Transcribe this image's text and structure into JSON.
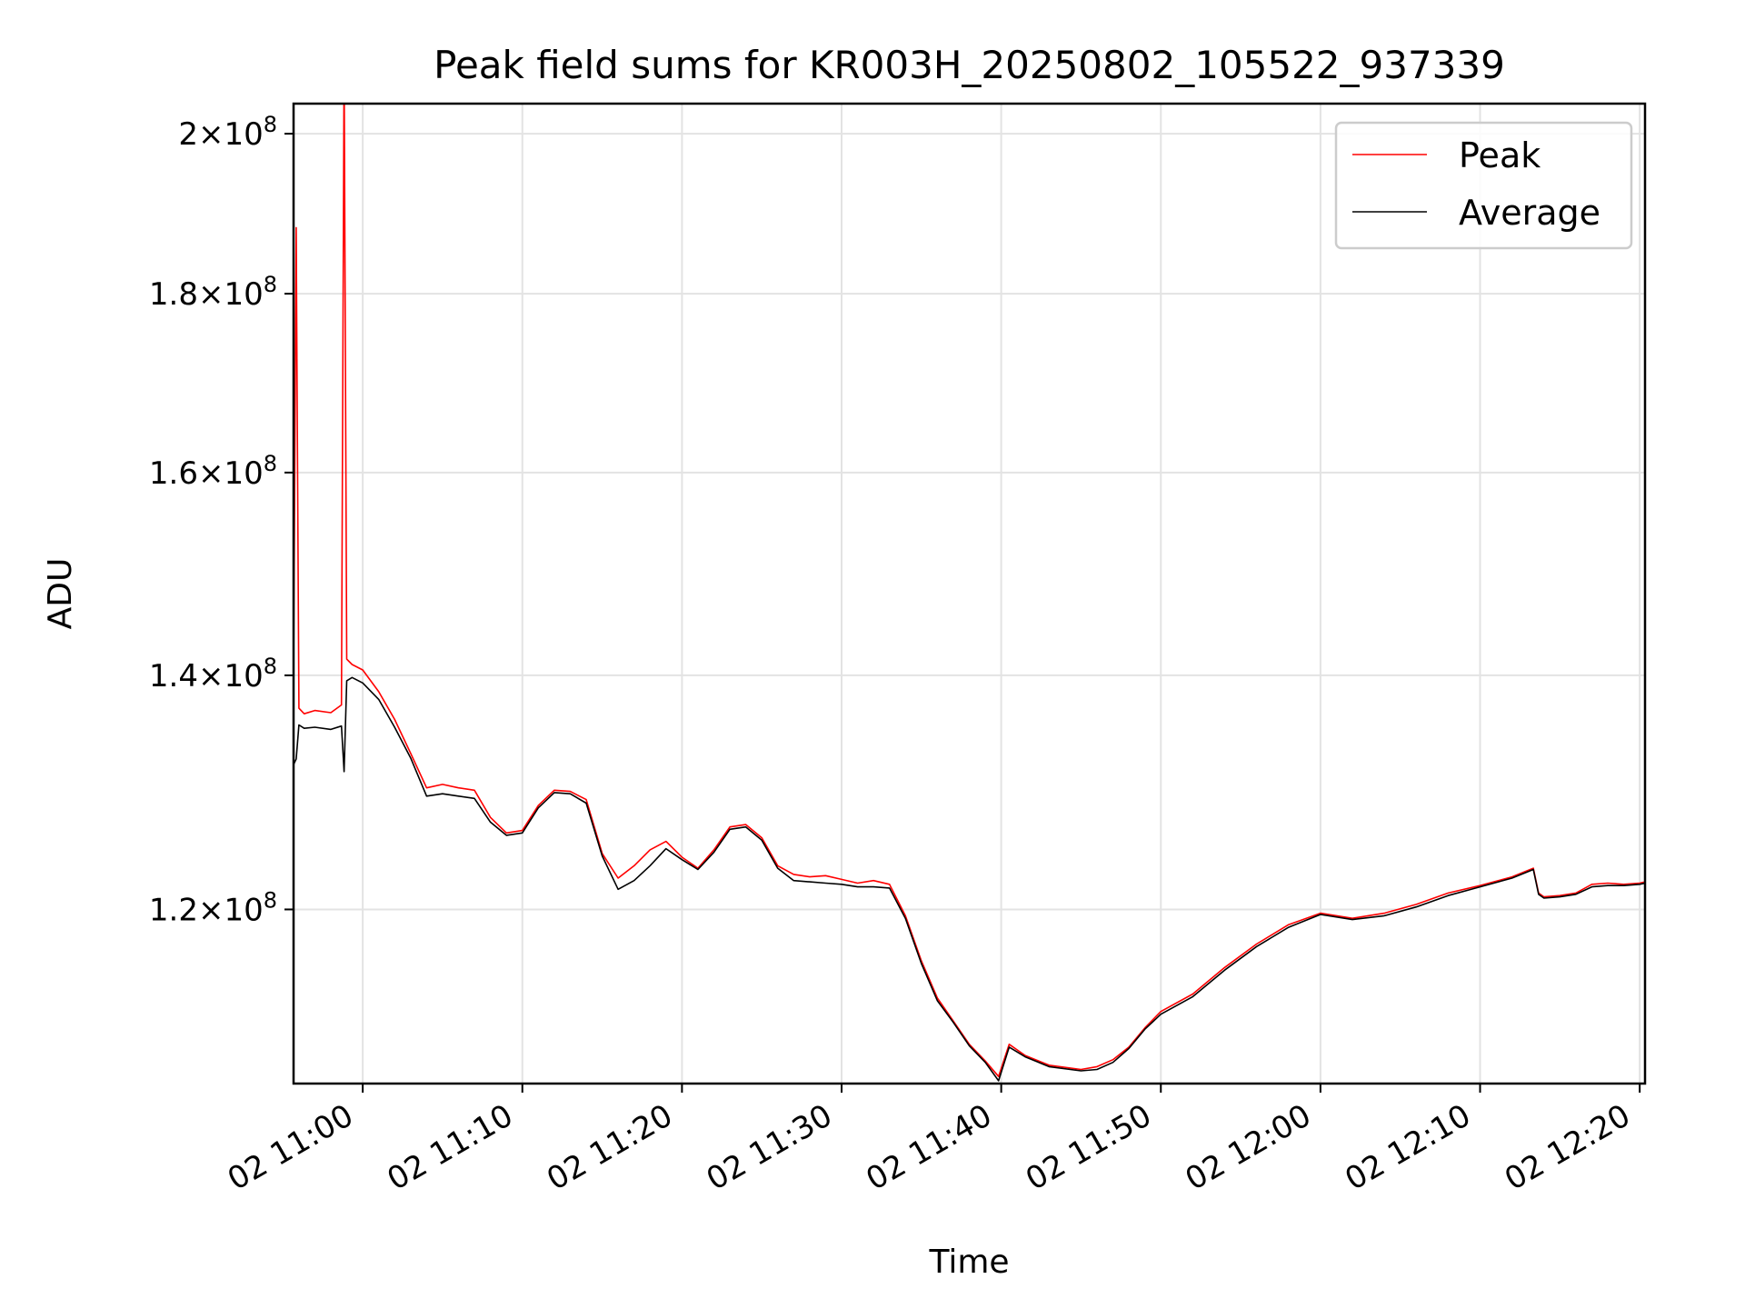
{
  "chart_data": {
    "type": "line",
    "title": "Peak field sums for KR003H_20250802_105522_937339",
    "xlabel": "Time",
    "ylabel": "ADU",
    "x_unit": "time of day (day 02)",
    "xlim": [
      "10:55:40",
      "12:20:20"
    ],
    "ylim": [
      107000000,
      204000000
    ],
    "yscale": "log",
    "grid": true,
    "legend_position": "upper-right",
    "x_ticks": [
      {
        "time": "11:00",
        "label": "02 11:00"
      },
      {
        "time": "11:10",
        "label": "02 11:10"
      },
      {
        "time": "11:20",
        "label": "02 11:20"
      },
      {
        "time": "11:30",
        "label": "02 11:30"
      },
      {
        "time": "11:40",
        "label": "02 11:40"
      },
      {
        "time": "11:50",
        "label": "02 11:50"
      },
      {
        "time": "12:00",
        "label": "02 12:00"
      },
      {
        "time": "12:10",
        "label": "02 12:10"
      },
      {
        "time": "12:20",
        "label": "02 12:20"
      }
    ],
    "y_ticks": [
      {
        "value": 120000000,
        "mantissa": "1.2",
        "base": "10",
        "exp": "8"
      },
      {
        "value": 140000000,
        "mantissa": "1.4",
        "base": "10",
        "exp": "8"
      },
      {
        "value": 160000000,
        "mantissa": "1.6",
        "base": "10",
        "exp": "8"
      },
      {
        "value": 180000000,
        "mantissa": "1.8",
        "base": "10",
        "exp": "8"
      },
      {
        "value": 200000000,
        "mantissa": "2",
        "base": "10",
        "exp": "8"
      }
    ],
    "series": [
      {
        "name": "Peak",
        "color": "#ff0000",
        "x": [
          "10:55:40",
          "10:55:50",
          "10:56:00",
          "10:56:20",
          "10:57:00",
          "10:58:00",
          "10:58:40",
          "10:58:50",
          "10:59:00",
          "10:59:20",
          "11:00:00",
          "11:01:00",
          "11:02:00",
          "11:03:00",
          "11:04:00",
          "11:05:00",
          "11:06:00",
          "11:07:00",
          "11:08:00",
          "11:09:00",
          "11:10:00",
          "11:11:00",
          "11:12:00",
          "11:13:00",
          "11:14:00",
          "11:15:00",
          "11:16:00",
          "11:17:00",
          "11:18:00",
          "11:19:00",
          "11:20:00",
          "11:21:00",
          "11:22:00",
          "11:23:00",
          "11:24:00",
          "11:25:00",
          "11:26:00",
          "11:27:00",
          "11:28:00",
          "11:29:00",
          "11:30:00",
          "11:31:00",
          "11:32:00",
          "11:33:00",
          "11:34:00",
          "11:35:00",
          "11:36:00",
          "11:37:00",
          "11:38:00",
          "11:39:00",
          "11:39:50",
          "11:40:30",
          "11:41:30",
          "11:43:00",
          "11:45:00",
          "11:46:00",
          "11:47:00",
          "11:48:00",
          "11:49:00",
          "11:50:00",
          "11:52:00",
          "11:54:00",
          "11:56:00",
          "11:58:00",
          "12:00:00",
          "12:02:00",
          "12:04:00",
          "12:06:00",
          "12:08:00",
          "12:10:00",
          "12:12:00",
          "12:13:20",
          "12:13:40",
          "12:14:00",
          "12:15:00",
          "12:16:00",
          "12:17:00",
          "12:18:00",
          "12:19:00",
          "12:20:00",
          "12:20:20"
        ],
        "values": [
          140000000,
          188000000,
          137000000,
          136500000,
          136800000,
          136600000,
          137300000,
          210000000,
          141500000,
          141000000,
          140500000,
          138500000,
          136000000,
          133000000,
          130000000,
          130300000,
          130000000,
          129800000,
          127500000,
          126200000,
          126400000,
          128500000,
          129800000,
          129700000,
          129000000,
          124500000,
          122500000,
          123500000,
          124800000,
          125500000,
          124200000,
          123300000,
          124800000,
          126700000,
          126900000,
          125800000,
          123500000,
          122800000,
          122600000,
          122700000,
          122400000,
          122100000,
          122300000,
          122000000,
          119500000,
          116000000,
          113200000,
          111500000,
          109800000,
          108600000,
          107500000,
          109800000,
          109000000,
          108300000,
          108000000,
          108200000,
          108700000,
          109600000,
          111000000,
          112200000,
          113500000,
          115500000,
          117300000,
          118800000,
          119700000,
          119300000,
          119700000,
          120400000,
          121300000,
          121900000,
          122600000,
          123300000,
          121300000,
          121000000,
          121100000,
          121300000,
          122000000,
          122100000,
          122000000,
          122100000,
          122200000
        ]
      },
      {
        "name": "Average",
        "color": "#000000",
        "x": [
          "10:55:40",
          "10:55:50",
          "10:56:00",
          "10:56:20",
          "10:57:00",
          "10:58:00",
          "10:58:40",
          "10:58:50",
          "10:59:00",
          "10:59:20",
          "11:00:00",
          "11:01:00",
          "11:02:00",
          "11:03:00",
          "11:04:00",
          "11:05:00",
          "11:06:00",
          "11:07:00",
          "11:08:00",
          "11:09:00",
          "11:10:00",
          "11:11:00",
          "11:12:00",
          "11:13:00",
          "11:14:00",
          "11:15:00",
          "11:16:00",
          "11:17:00",
          "11:18:00",
          "11:19:00",
          "11:20:00",
          "11:21:00",
          "11:22:00",
          "11:23:00",
          "11:24:00",
          "11:25:00",
          "11:26:00",
          "11:27:00",
          "11:28:00",
          "11:29:00",
          "11:30:00",
          "11:31:00",
          "11:32:00",
          "11:33:00",
          "11:34:00",
          "11:35:00",
          "11:36:00",
          "11:37:00",
          "11:38:00",
          "11:39:00",
          "11:39:50",
          "11:40:30",
          "11:41:30",
          "11:43:00",
          "11:45:00",
          "11:46:00",
          "11:47:00",
          "11:48:00",
          "11:49:00",
          "11:50:00",
          "11:52:00",
          "11:54:00",
          "11:56:00",
          "11:58:00",
          "12:00:00",
          "12:02:00",
          "12:04:00",
          "12:06:00",
          "12:08:00",
          "12:10:00",
          "12:12:00",
          "12:13:20",
          "12:13:40",
          "12:14:00",
          "12:15:00",
          "12:16:00",
          "12:17:00",
          "12:18:00",
          "12:19:00",
          "12:20:00",
          "12:20:20"
        ],
        "values": [
          132000000,
          132500000,
          135500000,
          135200000,
          135300000,
          135100000,
          135400000,
          131400000,
          139500000,
          139800000,
          139300000,
          137800000,
          135300000,
          132600000,
          129300000,
          129500000,
          129300000,
          129100000,
          127100000,
          126000000,
          126200000,
          128300000,
          129600000,
          129500000,
          128700000,
          124300000,
          121600000,
          122300000,
          123500000,
          124900000,
          124000000,
          123200000,
          124600000,
          126500000,
          126700000,
          125600000,
          123300000,
          122300000,
          122200000,
          122100000,
          122000000,
          121800000,
          121800000,
          121700000,
          119300000,
          115800000,
          113000000,
          111400000,
          109700000,
          108500000,
          107200000,
          109600000,
          108900000,
          108200000,
          107900000,
          108000000,
          108500000,
          109500000,
          110900000,
          112000000,
          113300000,
          115300000,
          117100000,
          118600000,
          119600000,
          119200000,
          119500000,
          120200000,
          121100000,
          121800000,
          122500000,
          123200000,
          121200000,
          120900000,
          121000000,
          121200000,
          121800000,
          121900000,
          121900000,
          122000000,
          122100000
        ]
      }
    ]
  }
}
